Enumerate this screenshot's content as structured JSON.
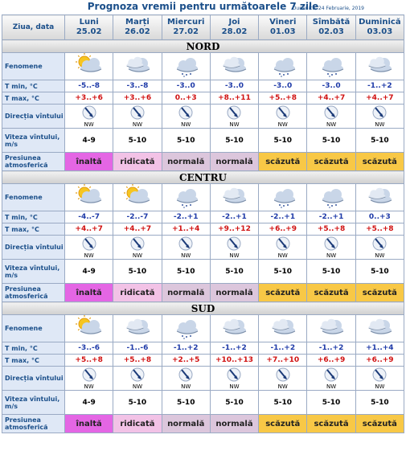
{
  "title": "Prognoza vremii pentru următoarele 7 zile",
  "date": "Duminică, 24 Februarie, 2019",
  "header": {
    "label": "Ziua, data",
    "days": [
      {
        "name": "Luni",
        "date": "25.02"
      },
      {
        "name": "Marți",
        "date": "26.02"
      },
      {
        "name": "Miercuri",
        "date": "27.02"
      },
      {
        "name": "Joi",
        "date": "28.02"
      },
      {
        "name": "Vineri",
        "date": "01.03"
      },
      {
        "name": "Sîmbătă",
        "date": "02.03"
      },
      {
        "name": "Duminică",
        "date": "03.03"
      }
    ]
  },
  "row_labels": {
    "phenomena": "Fenomene",
    "tmin": "T min, °C",
    "tmax": "T max, °C",
    "wind_dir": "Direcția vîntului",
    "wind_speed": "Viteza vîntului, m/s",
    "pressure": "Presiunea atmosferică"
  },
  "regions": [
    {
      "name": "NORD",
      "tmin": [
        "-5..-8",
        "-3..-8",
        "-3..0",
        "-3..0",
        "-3..0",
        "-3..0",
        "-1..+2"
      ],
      "tmax": [
        "+3..+6",
        "+3..+6",
        "0..+3",
        "+8..+11",
        "+5..+8",
        "+4..+7",
        "+4..+7"
      ],
      "wind_dir": [
        "NW",
        "NW",
        "NW",
        "NW",
        "NW",
        "NW",
        "NW"
      ],
      "wind_speed": [
        "4-9",
        "5-10",
        "5-10",
        "5-10",
        "5-10",
        "5-10",
        "5-10"
      ],
      "pressure": [
        "înaltă",
        "ridicată",
        "normală",
        "normală",
        "scăzută",
        "scăzută",
        "scăzută"
      ],
      "pressure_colors": [
        "#e466e4",
        "#f2c2e6",
        "#dcc6dc",
        "#dcc6dc",
        "#f8c846",
        "#f8c846",
        "#f8c846"
      ]
    },
    {
      "name": "CENTRU",
      "tmin": [
        "-4..-7",
        "-2..-7",
        "-2..+1",
        "-2..+1",
        "-2..+1",
        "-2..+1",
        "0..+3"
      ],
      "tmax": [
        "+4..+7",
        "+4..+7",
        "+1..+4",
        "+9..+12",
        "+6..+9",
        "+5..+8",
        "+5..+8"
      ],
      "wind_dir": [
        "NW",
        "NW",
        "NW",
        "NW",
        "NW",
        "NW",
        "NW"
      ],
      "wind_speed": [
        "4-9",
        "5-10",
        "5-10",
        "5-10",
        "5-10",
        "5-10",
        "5-10"
      ],
      "pressure": [
        "înaltă",
        "ridicată",
        "normală",
        "normală",
        "scăzută",
        "scăzută",
        "scăzută"
      ],
      "pressure_colors": [
        "#e466e4",
        "#f2c2e6",
        "#dcc6dc",
        "#dcc6dc",
        "#f8c846",
        "#f8c846",
        "#f8c846"
      ]
    },
    {
      "name": "SUD",
      "tmin": [
        "-3..-6",
        "-1..-6",
        "-1..+2",
        "-1..+2",
        "-1..+2",
        "-1..+2",
        "+1..+4"
      ],
      "tmax": [
        "+5..+8",
        "+5..+8",
        "+2..+5",
        "+10..+13",
        "+7..+10",
        "+6..+9",
        "+6..+9"
      ],
      "wind_dir": [
        "NW",
        "NW",
        "NW",
        "NW",
        "NW",
        "NW",
        "NW"
      ],
      "wind_speed": [
        "4-9",
        "5-10",
        "5-10",
        "5-10",
        "5-10",
        "5-10",
        "5-10"
      ],
      "pressure": [
        "înaltă",
        "ridicată",
        "normală",
        "normală",
        "scăzută",
        "scăzută",
        "scăzută"
      ],
      "pressure_colors": [
        "#e466e4",
        "#f2c2e6",
        "#dcc6dc",
        "#dcc6dc",
        "#f8c846",
        "#f8c846",
        "#f8c846"
      ]
    }
  ]
}
